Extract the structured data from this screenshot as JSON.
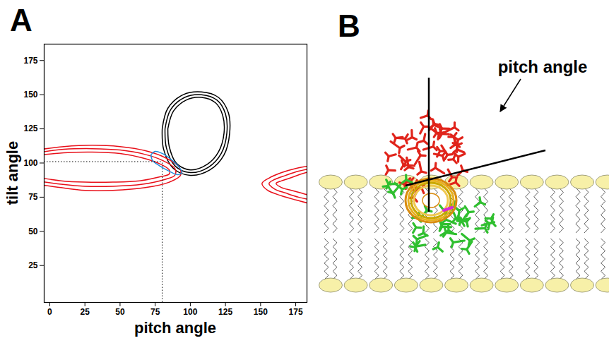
{
  "chart_data": {
    "type": "contour",
    "panel": "A",
    "x_label": "pitch angle",
    "y_label": "tilt angle",
    "xlim": [
      -4,
      183
    ],
    "ylim": [
      -2,
      187
    ],
    "xticks": [
      0,
      25,
      50,
      75,
      100,
      125,
      150,
      175
    ],
    "yticks": [
      25,
      50,
      75,
      100,
      125,
      150,
      175
    ],
    "grid": false,
    "reference_point": {
      "x": 80,
      "y": 101
    },
    "series": [
      {
        "color": "#000000",
        "values": [
          [
            80,
            125
          ],
          [
            84,
            140
          ],
          [
            95,
            150
          ],
          [
            108,
            152
          ],
          [
            120,
            148
          ],
          [
            127,
            137
          ],
          [
            128,
            122
          ],
          [
            124,
            106
          ],
          [
            114,
            95
          ],
          [
            100,
            91
          ],
          [
            88,
            96
          ],
          [
            81,
            110
          ],
          [
            80,
            125
          ]
        ]
      },
      {
        "color": "#000000",
        "values": [
          [
            82,
            125
          ],
          [
            86,
            139
          ],
          [
            96,
            148
          ],
          [
            108,
            150
          ],
          [
            119,
            146
          ],
          [
            125,
            136
          ],
          [
            126,
            122
          ],
          [
            122,
            107
          ],
          [
            113,
            97
          ],
          [
            100,
            93
          ],
          [
            89,
            98
          ],
          [
            83,
            111
          ],
          [
            82,
            125
          ]
        ]
      },
      {
        "color": "#000000",
        "values": [
          [
            84,
            125
          ],
          [
            88,
            138
          ],
          [
            97,
            146
          ],
          [
            108,
            148
          ],
          [
            118,
            144
          ],
          [
            123,
            135
          ],
          [
            124,
            122
          ],
          [
            120,
            108
          ],
          [
            112,
            99
          ],
          [
            100,
            95
          ],
          [
            90,
            100
          ],
          [
            85,
            112
          ],
          [
            84,
            125
          ]
        ]
      },
      {
        "color": "#e8101a",
        "values": [
          [
            -6,
            110
          ],
          [
            10,
            112
          ],
          [
            30,
            113
          ],
          [
            50,
            112
          ],
          [
            68,
            109
          ],
          [
            82,
            104
          ],
          [
            92,
            97
          ],
          [
            93,
            91
          ],
          [
            85,
            86
          ],
          [
            68,
            82
          ],
          [
            45,
            80
          ],
          [
            25,
            80
          ],
          [
            8,
            82
          ],
          [
            -6,
            84
          ]
        ]
      },
      {
        "color": "#e8101a",
        "values": [
          [
            -6,
            108
          ],
          [
            10,
            110
          ],
          [
            30,
            110.5
          ],
          [
            50,
            109.5
          ],
          [
            67,
            106.5
          ],
          [
            80,
            102
          ],
          [
            89,
            96
          ],
          [
            89,
            91
          ],
          [
            82,
            88
          ],
          [
            66,
            84.5
          ],
          [
            45,
            83
          ],
          [
            25,
            83
          ],
          [
            8,
            84.5
          ],
          [
            -6,
            86.5
          ]
        ]
      },
      {
        "color": "#e8101a",
        "values": [
          [
            -6,
            106
          ],
          [
            10,
            107.5
          ],
          [
            30,
            108
          ],
          [
            50,
            107
          ],
          [
            65,
            104
          ],
          [
            77,
            100
          ],
          [
            85,
            95
          ],
          [
            85,
            92
          ],
          [
            79,
            90
          ],
          [
            64,
            87
          ],
          [
            45,
            86
          ],
          [
            25,
            86
          ],
          [
            8,
            87
          ],
          [
            -6,
            89
          ]
        ]
      },
      {
        "color": "#e8101a",
        "values": [
          [
            186,
            98
          ],
          [
            175,
            96
          ],
          [
            165,
            93
          ],
          [
            156,
            89
          ],
          [
            151,
            85
          ],
          [
            155,
            80
          ],
          [
            165,
            76
          ],
          [
            175,
            73
          ],
          [
            186,
            70
          ]
        ]
      },
      {
        "color": "#e8101a",
        "values": [
          [
            186,
            96
          ],
          [
            177,
            94
          ],
          [
            168,
            91
          ],
          [
            160,
            88
          ],
          [
            156,
            85
          ],
          [
            160,
            81
          ],
          [
            168,
            78
          ],
          [
            177,
            75
          ],
          [
            186,
            73
          ]
        ]
      },
      {
        "color": "#e8101a",
        "values": [
          [
            186,
            94
          ],
          [
            179,
            92
          ],
          [
            171,
            89
          ],
          [
            165,
            87
          ],
          [
            161,
            85
          ],
          [
            165,
            82
          ],
          [
            172,
            80
          ],
          [
            179,
            78
          ],
          [
            186,
            76
          ]
        ]
      },
      {
        "color": "#1e8fe0",
        "values": [
          [
            72,
            106
          ],
          [
            75,
            108.5
          ],
          [
            80,
            107
          ],
          [
            87,
            102
          ],
          [
            92,
            97
          ],
          [
            94,
            93
          ],
          [
            91,
            91.5
          ],
          [
            85,
            94
          ],
          [
            78,
            98
          ],
          [
            73,
            102
          ],
          [
            72,
            106
          ]
        ]
      }
    ]
  },
  "diagram": {
    "panel": "B",
    "annotation": "pitch angle"
  }
}
